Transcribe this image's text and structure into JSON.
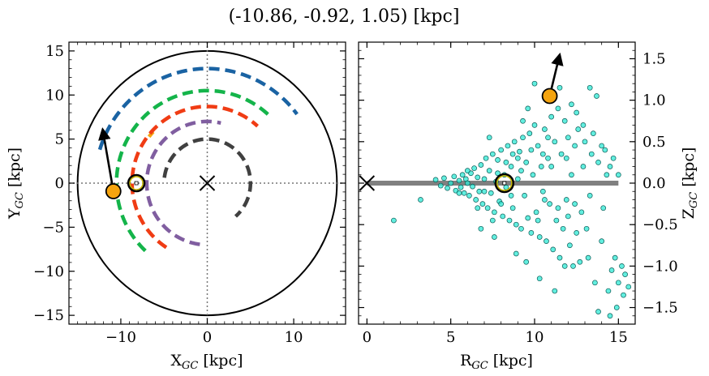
{
  "title": "(-10.86, -0.92, 1.05) [kpc]",
  "chart_data": [
    {
      "type": "scatter",
      "panel": "left",
      "xlabel": "X",
      "xlabel_sub": "GC",
      "xlabel_unit": " [kpc]",
      "ylabel": "Y",
      "ylabel_sub": "GC",
      "ylabel_unit": " [kpc]",
      "xlim": [
        -16,
        16
      ],
      "ylim": [
        -16,
        16
      ],
      "xticks": [
        -10,
        0,
        10
      ],
      "yticks": [
        -15,
        -10,
        -5,
        0,
        5,
        10,
        15
      ],
      "xtick_labels": [
        "−10",
        "0",
        "10"
      ],
      "ytick_labels": [
        "−15",
        "−10",
        "−5",
        "0",
        "5",
        "10",
        "15"
      ],
      "boundary_circle_radius": 15,
      "origin_lines": "dotted gray",
      "galactic_center_marker": [
        0,
        0
      ],
      "sun_marker": [
        -8.2,
        0.0
      ],
      "object": {
        "x": -10.86,
        "y": -0.92,
        "color": "#f5a40f"
      },
      "velocity_arrow": {
        "from": [
          -10.86,
          -0.92
        ],
        "to": [
          -12.1,
          6.1
        ]
      },
      "spiral_arms": [
        {
          "color": "#1a63a3",
          "radius": 13.0,
          "start_deg": 163,
          "end_deg": 37
        },
        {
          "color": "#14b44a",
          "radius": 10.5,
          "start_deg": 227,
          "end_deg": 47
        },
        {
          "color": "#f5a40f",
          "radius": 8.55,
          "start_deg": 142,
          "end_deg": 137
        },
        {
          "color": "#f03c14",
          "radius": 8.7,
          "start_deg": 237,
          "end_deg": 48
        },
        {
          "color": "#805ea0",
          "radius": 7.0,
          "start_deg": 263,
          "end_deg": 77
        },
        {
          "color": "#404040",
          "radius": 5.0,
          "start_deg": 173,
          "end_deg": -49
        }
      ]
    },
    {
      "type": "scatter",
      "panel": "right",
      "xlabel": "R",
      "xlabel_sub": "GC",
      "xlabel_unit": " [kpc]",
      "ylabel": "Z",
      "ylabel_sub": "GC",
      "ylabel_unit": " [kpc]",
      "xlim": [
        -0.5,
        16
      ],
      "ylim": [
        -1.7,
        1.7
      ],
      "xticks": [
        0,
        5,
        10,
        15
      ],
      "yticks": [
        -1.5,
        -1.0,
        -0.5,
        0.0,
        0.5,
        1.0,
        1.5
      ],
      "xtick_labels": [
        "0",
        "5",
        "10",
        "15"
      ],
      "ytick_labels": [
        "−1.5",
        "−1.0",
        "−0.5",
        "0.0",
        "0.5",
        "1.0",
        "1.5"
      ],
      "disk_line": {
        "from": [
          0,
          0
        ],
        "to": [
          15,
          0
        ],
        "color": "#808080"
      },
      "galactic_center_marker": [
        0,
        0
      ],
      "sun_marker": [
        8.2,
        0.0
      ],
      "object": {
        "r": 10.9,
        "z": 1.05,
        "color": "#f5a40f"
      },
      "velocity_arrow": {
        "from": [
          10.9,
          1.05
        ],
        "to": [
          11.5,
          1.55
        ]
      },
      "star_color": "#2ee8d4",
      "star_points": [
        [
          1.6,
          -0.45
        ],
        [
          3.2,
          -0.2
        ],
        [
          4.1,
          0.04
        ],
        [
          4.4,
          -0.03
        ],
        [
          4.6,
          0.06
        ],
        [
          4.8,
          -0.06
        ],
        [
          5.0,
          0.0
        ],
        [
          5.2,
          0.08
        ],
        [
          5.3,
          -0.09
        ],
        [
          5.5,
          0.03
        ],
        [
          5.6,
          -0.05
        ],
        [
          5.7,
          0.1
        ],
        [
          5.8,
          -0.12
        ],
        [
          5.9,
          0.05
        ],
        [
          6.0,
          0.0
        ],
        [
          6.1,
          -0.15
        ],
        [
          6.2,
          0.12
        ],
        [
          6.3,
          -0.04
        ],
        [
          6.4,
          0.18
        ],
        [
          6.5,
          -0.2
        ],
        [
          6.6,
          0.07
        ],
        [
          6.7,
          -0.1
        ],
        [
          6.8,
          0.22
        ],
        [
          6.9,
          -0.25
        ],
        [
          7.0,
          0.05
        ],
        [
          7.1,
          0.3
        ],
        [
          7.2,
          -0.3
        ],
        [
          7.3,
          0.15
        ],
        [
          7.4,
          -0.12
        ],
        [
          7.5,
          0.35
        ],
        [
          7.6,
          -0.35
        ],
        [
          7.7,
          0.02
        ],
        [
          7.8,
          0.28
        ],
        [
          7.9,
          -0.22
        ],
        [
          8.0,
          0.4
        ],
        [
          8.1,
          -0.4
        ],
        [
          8.2,
          0.1
        ],
        [
          8.3,
          -0.05
        ],
        [
          8.4,
          0.45
        ],
        [
          8.5,
          -0.45
        ],
        [
          8.6,
          0.2
        ],
        [
          8.7,
          -0.3
        ],
        [
          8.8,
          0.5
        ],
        [
          8.9,
          -0.5
        ],
        [
          9.0,
          0.05
        ],
        [
          9.1,
          0.38
        ],
        [
          9.2,
          -0.55
        ],
        [
          9.3,
          0.55
        ],
        [
          9.4,
          -0.15
        ],
        [
          9.5,
          0.25
        ],
        [
          9.6,
          -0.42
        ],
        [
          9.7,
          0.6
        ],
        [
          9.8,
          -0.6
        ],
        [
          9.9,
          0.1
        ],
        [
          10.0,
          0.7
        ],
        [
          10.1,
          -0.35
        ],
        [
          10.2,
          0.45
        ],
        [
          10.3,
          -0.65
        ],
        [
          10.4,
          0.2
        ],
        [
          10.5,
          -0.1
        ],
        [
          10.6,
          0.65
        ],
        [
          10.7,
          -0.7
        ],
        [
          10.8,
          0.3
        ],
        [
          10.9,
          -0.25
        ],
        [
          11.0,
          0.8
        ],
        [
          11.1,
          -0.8
        ],
        [
          11.2,
          0.5
        ],
        [
          11.3,
          -0.45
        ],
        [
          11.4,
          0.9
        ],
        [
          11.5,
          -0.9
        ],
        [
          11.6,
          0.35
        ],
        [
          11.7,
          -0.55
        ],
        [
          11.8,
          0.75
        ],
        [
          11.9,
          -0.2
        ],
        [
          12.0,
          0.55
        ],
        [
          12.1,
          -0.75
        ],
        [
          12.2,
          0.1
        ],
        [
          12.3,
          -1.0
        ],
        [
          12.4,
          0.45
        ],
        [
          12.5,
          -0.6
        ],
        [
          12.6,
          0.65
        ],
        [
          12.8,
          -0.35
        ],
        [
          13.0,
          0.5
        ],
        [
          13.2,
          -0.9
        ],
        [
          13.4,
          0.35
        ],
        [
          13.6,
          -1.2
        ],
        [
          13.8,
          0.25
        ],
        [
          14.0,
          -0.7
        ],
        [
          14.2,
          0.4
        ],
        [
          14.4,
          -1.3
        ],
        [
          14.6,
          -1.05
        ],
        [
          14.8,
          -0.9
        ],
        [
          15.0,
          -1.2
        ],
        [
          15.2,
          -1.0
        ],
        [
          15.4,
          -1.1
        ],
        [
          15.6,
          -1.25
        ],
        [
          14.9,
          -1.5
        ],
        [
          14.5,
          -1.6
        ],
        [
          13.8,
          -1.55
        ],
        [
          15.3,
          -1.35
        ],
        [
          10.0,
          1.2
        ],
        [
          11.5,
          1.15
        ],
        [
          12.5,
          0.85
        ],
        [
          13.3,
          1.15
        ],
        [
          12.9,
          0.7
        ],
        [
          9.6,
          0.9
        ],
        [
          9.3,
          0.75
        ],
        [
          8.9,
          -0.85
        ],
        [
          7.6,
          -0.65
        ],
        [
          10.3,
          -1.15
        ],
        [
          11.2,
          -1.3
        ],
        [
          6.8,
          -0.55
        ],
        [
          7.3,
          0.55
        ],
        [
          9.5,
          -0.95
        ],
        [
          13.5,
          0.6
        ],
        [
          14.0,
          0.45
        ],
        [
          14.3,
          0.1
        ],
        [
          14.7,
          0.3
        ],
        [
          12.0,
          -0.4
        ],
        [
          11.0,
          0.2
        ],
        [
          10.5,
          0.35
        ],
        [
          9.0,
          0.3
        ],
        [
          8.0,
          -0.25
        ],
        [
          7.0,
          -0.1
        ],
        [
          6.0,
          0.15
        ],
        [
          5.5,
          -0.12
        ],
        [
          11.8,
          -1.0
        ],
        [
          12.7,
          -0.95
        ],
        [
          13.1,
          -0.55
        ],
        [
          14.1,
          -0.3
        ],
        [
          12.2,
          0.95
        ],
        [
          13.7,
          1.05
        ],
        [
          10.8,
          0.55
        ],
        [
          9.2,
          0.15
        ],
        [
          8.7,
          0.35
        ],
        [
          7.8,
          0.12
        ],
        [
          6.6,
          -0.3
        ],
        [
          10.2,
          -0.45
        ],
        [
          11.4,
          -0.3
        ],
        [
          12.9,
          0.2
        ],
        [
          8.3,
          0.25
        ],
        [
          8.6,
          -0.15
        ],
        [
          9.8,
          0.4
        ],
        [
          10.6,
          -0.2
        ],
        [
          11.9,
          0.3
        ],
        [
          12.4,
          -0.25
        ],
        [
          13.3,
          -0.15
        ],
        [
          14.5,
          0.2
        ],
        [
          15.0,
          0.1
        ],
        [
          7.5,
          -0.45
        ]
      ]
    }
  ]
}
